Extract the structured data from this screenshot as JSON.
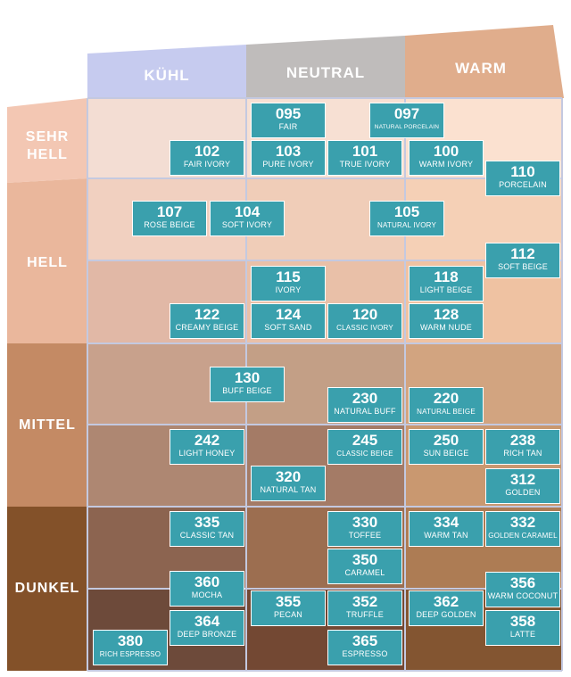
{
  "columns": [
    "KÜHL",
    "NEUTRAL",
    "WARM"
  ],
  "rows": [
    [
      "SEHR",
      "HELL"
    ],
    [
      "HELL"
    ],
    [
      "MITTEL"
    ],
    [
      "DUNKEL"
    ]
  ],
  "colors": {
    "swatch": "#3aa0ad",
    "kuehl_header": "#c2c8ec",
    "neutral_header": "#c4c1c0",
    "warm_header": "#e8b899"
  },
  "shades": [
    {
      "code": "095",
      "name": "FAIR"
    },
    {
      "code": "097",
      "name": "NATURAL PORCELAIN"
    },
    {
      "code": "102",
      "name": "FAIR IVORY"
    },
    {
      "code": "103",
      "name": "PURE IVORY"
    },
    {
      "code": "101",
      "name": "TRUE IVORY"
    },
    {
      "code": "100",
      "name": "WARM IVORY"
    },
    {
      "code": "110",
      "name": "PORCELAIN"
    },
    {
      "code": "107",
      "name": "ROSE BEIGE"
    },
    {
      "code": "104",
      "name": "SOFT IVORY"
    },
    {
      "code": "105",
      "name": "NATURAL IVORY"
    },
    {
      "code": "112",
      "name": "SOFT BEIGE"
    },
    {
      "code": "115",
      "name": "IVORY"
    },
    {
      "code": "118",
      "name": "LIGHT BEIGE"
    },
    {
      "code": "122",
      "name": "CREAMY BEIGE"
    },
    {
      "code": "124",
      "name": "SOFT SAND"
    },
    {
      "code": "120",
      "name": "CLASSIC IVORY"
    },
    {
      "code": "128",
      "name": "WARM NUDE"
    },
    {
      "code": "130",
      "name": "BUFF BEIGE"
    },
    {
      "code": "230",
      "name": "NATURAL BUFF"
    },
    {
      "code": "220",
      "name": "NATURAL BEIGE"
    },
    {
      "code": "242",
      "name": "LIGHT HONEY"
    },
    {
      "code": "245",
      "name": "CLASSIC BEIGE"
    },
    {
      "code": "250",
      "name": "SUN BEIGE"
    },
    {
      "code": "238",
      "name": "RICH TAN"
    },
    {
      "code": "320",
      "name": "NATURAL TAN"
    },
    {
      "code": "312",
      "name": "GOLDEN"
    },
    {
      "code": "335",
      "name": "CLASSIC TAN"
    },
    {
      "code": "330",
      "name": "TOFFEE"
    },
    {
      "code": "334",
      "name": "WARM TAN"
    },
    {
      "code": "332",
      "name": "GOLDEN CARAMEL"
    },
    {
      "code": "350",
      "name": "CARAMEL"
    },
    {
      "code": "360",
      "name": "MOCHA"
    },
    {
      "code": "356",
      "name": "WARM COCONUT"
    },
    {
      "code": "355",
      "name": "PECAN"
    },
    {
      "code": "352",
      "name": "TRUFFLE"
    },
    {
      "code": "362",
      "name": "DEEP GOLDEN"
    },
    {
      "code": "364",
      "name": "DEEP BRONZE"
    },
    {
      "code": "358",
      "name": "LATTE"
    },
    {
      "code": "380",
      "name": "RICH ESPRESSO"
    },
    {
      "code": "365",
      "name": "ESPRESSO"
    }
  ]
}
